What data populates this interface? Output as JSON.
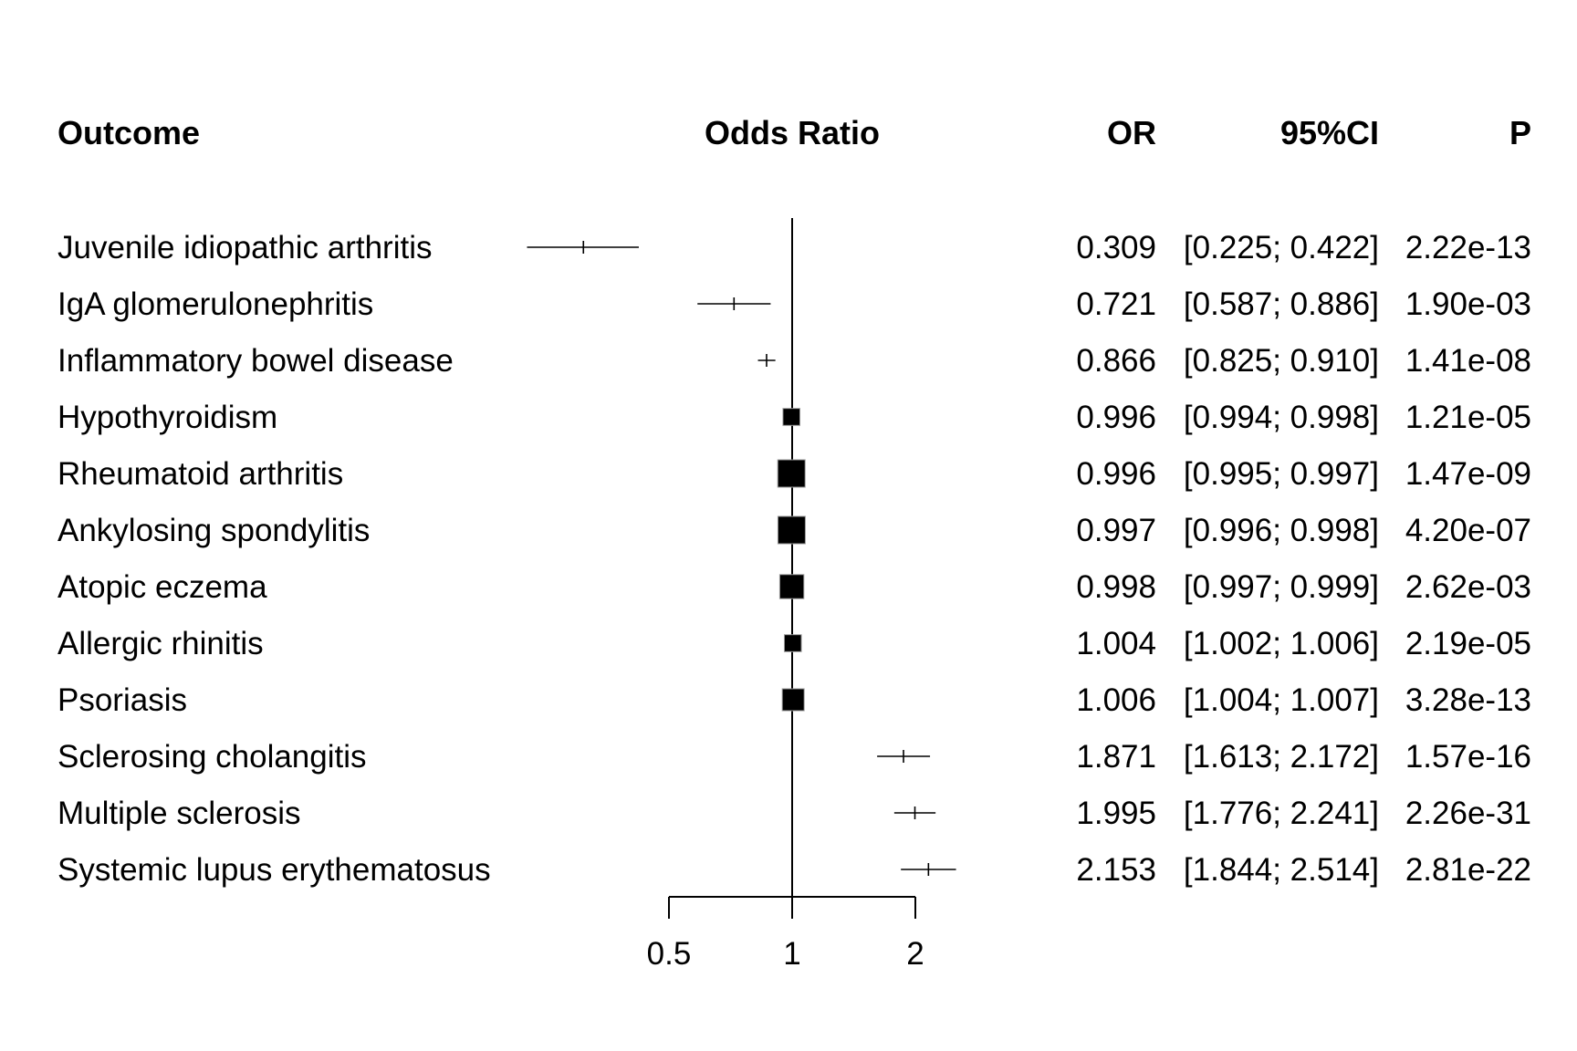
{
  "chart_data": {
    "type": "forest",
    "headers": {
      "outcome": "Outcome",
      "plot": "Odds Ratio",
      "or": "OR",
      "ci": "95%CI",
      "p": "P"
    },
    "x_scale": "log",
    "xlim": [
      0.5,
      2
    ],
    "xticks": [
      {
        "value": 0.5,
        "label": "0.5"
      },
      {
        "value": 1,
        "label": "1"
      },
      {
        "value": 2,
        "label": "2"
      }
    ],
    "reference_line": 1,
    "rows": [
      {
        "label": "Juvenile idiopathic arthritis",
        "or": 0.309,
        "lo": 0.225,
        "hi": 0.422,
        "or_text": "0.309",
        "ci_text": "[0.225; 0.422]",
        "p_text": "2.22e-13",
        "weight": 0
      },
      {
        "label": "IgA glomerulonephritis",
        "or": 0.721,
        "lo": 0.587,
        "hi": 0.886,
        "or_text": "0.721",
        "ci_text": "[0.587; 0.886]",
        "p_text": "1.90e-03",
        "weight": 0
      },
      {
        "label": "Inflammatory bowel disease",
        "or": 0.866,
        "lo": 0.825,
        "hi": 0.91,
        "or_text": "0.866",
        "ci_text": "[0.825; 0.910]",
        "p_text": "1.41e-08",
        "weight": 0
      },
      {
        "label": "Hypothyroidism",
        "or": 0.996,
        "lo": 0.994,
        "hi": 0.998,
        "or_text": "0.996",
        "ci_text": "[0.994; 0.998]",
        "p_text": "1.21e-05",
        "weight": 0.62
      },
      {
        "label": "Rheumatoid arthritis",
        "or": 0.996,
        "lo": 0.995,
        "hi": 0.997,
        "or_text": "0.996",
        "ci_text": "[0.995; 0.997]",
        "p_text": "1.47e-09",
        "weight": 1
      },
      {
        "label": "Ankylosing spondylitis",
        "or": 0.997,
        "lo": 0.996,
        "hi": 0.998,
        "or_text": "0.997",
        "ci_text": "[0.996; 0.998]",
        "p_text": "4.20e-07",
        "weight": 1
      },
      {
        "label": "Atopic eczema",
        "or": 0.998,
        "lo": 0.997,
        "hi": 0.999,
        "or_text": "0.998",
        "ci_text": "[0.997; 0.999]",
        "p_text": "2.62e-03",
        "weight": 0.88
      },
      {
        "label": "Allergic rhinitis",
        "or": 1.004,
        "lo": 1.002,
        "hi": 1.006,
        "or_text": "1.004",
        "ci_text": "[1.002; 1.006]",
        "p_text": "2.19e-05",
        "weight": 0.62
      },
      {
        "label": "Psoriasis",
        "or": 1.006,
        "lo": 1.004,
        "hi": 1.007,
        "or_text": "1.006",
        "ci_text": "[1.004; 1.007]",
        "p_text": "3.28e-13",
        "weight": 0.8
      },
      {
        "label": "Sclerosing cholangitis",
        "or": 1.871,
        "lo": 1.613,
        "hi": 2.172,
        "or_text": "1.871",
        "ci_text": "[1.613; 2.172]",
        "p_text": "1.57e-16",
        "weight": 0
      },
      {
        "label": "Multiple sclerosis",
        "or": 1.995,
        "lo": 1.776,
        "hi": 2.241,
        "or_text": "1.995",
        "ci_text": "[1.776; 2.241]",
        "p_text": "2.26e-31",
        "weight": 0
      },
      {
        "label": "Systemic lupus erythematosus",
        "or": 2.153,
        "lo": 1.844,
        "hi": 2.514,
        "or_text": "2.153",
        "ci_text": "[1.844; 2.514]",
        "p_text": "2.81e-22",
        "weight": 0
      }
    ]
  }
}
